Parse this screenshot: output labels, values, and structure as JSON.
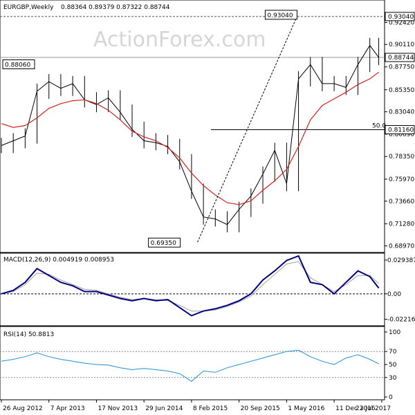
{
  "chart_data": [
    {
      "type": "line",
      "name": "price",
      "title": "EURGBP,Weekly",
      "ohlc_text": "0.88364 0.89379 0.87322 0.88744",
      "ylim": [
        0.6835,
        0.947
      ],
      "y_ticks": [
        "0.92420",
        "0.90110",
        "0.87750",
        "0.85350",
        "0.83040",
        "0.80690",
        "0.78350",
        "0.75970",
        "0.73660",
        "0.71280",
        "0.68970"
      ],
      "y_tick_values": [
        0.9242,
        0.9011,
        0.8775,
        0.8535,
        0.8304,
        0.8069,
        0.7835,
        0.7597,
        0.7366,
        0.7128,
        0.6897
      ],
      "price_boxes": [
        {
          "label": "0.93040",
          "value": 0.9304,
          "side": "right"
        },
        {
          "label": "0.88744",
          "value": 0.88744,
          "side": "right"
        },
        {
          "label": "0.81160",
          "value": 0.8116,
          "side": "right"
        }
      ],
      "annotations": [
        {
          "label": "0.93040",
          "value": 0.9304,
          "week": 199
        },
        {
          "label": "0.88060",
          "value": 0.8806,
          "week": 24
        },
        {
          "label": "0.69350",
          "value": 0.6935,
          "week": 126
        }
      ],
      "fib_label": "50.0",
      "fib_value": 0.8116,
      "high_line_value": 0.9304,
      "current_line_value": 0.88744,
      "trendline": [
        {
          "week": 132,
          "value": 0.6935
        },
        {
          "week": 199,
          "value": 0.9304
        }
      ],
      "x_weeks": [
        0,
        8,
        16,
        24,
        32,
        40,
        48,
        56,
        64,
        72,
        80,
        88,
        96,
        104,
        112,
        120,
        128,
        136,
        144,
        152,
        160,
        168,
        176,
        184,
        192,
        200,
        208,
        216,
        224,
        232,
        240,
        248,
        254
      ],
      "close": [
        0.795,
        0.8,
        0.805,
        0.852,
        0.862,
        0.855,
        0.86,
        0.843,
        0.838,
        0.845,
        0.83,
        0.812,
        0.8,
        0.798,
        0.794,
        0.778,
        0.747,
        0.72,
        0.718,
        0.712,
        0.728,
        0.742,
        0.765,
        0.79,
        0.755,
        0.865,
        0.88,
        0.86,
        0.86,
        0.856,
        0.88,
        0.9,
        0.8874
      ],
      "ma": [
        0.818,
        0.814,
        0.816,
        0.824,
        0.834,
        0.839,
        0.842,
        0.843,
        0.839,
        0.832,
        0.822,
        0.81,
        0.804,
        0.8,
        0.793,
        0.782,
        0.766,
        0.753,
        0.743,
        0.735,
        0.733,
        0.737,
        0.748,
        0.758,
        0.77,
        0.794,
        0.822,
        0.837,
        0.844,
        0.851,
        0.859,
        0.865,
        0.872
      ],
      "x_labels": [
        {
          "label": "26 Aug 2012",
          "week": 0
        },
        {
          "label": "7 Apr 2013",
          "week": 32
        },
        {
          "label": "17 Nov 2013",
          "week": 64
        },
        {
          "label": "29 Jun 2014",
          "week": 96
        },
        {
          "label": "8 Feb 2015",
          "week": 128
        },
        {
          "label": "20 Sep 2015",
          "week": 160
        },
        {
          "label": "1 May 2016",
          "week": 192
        },
        {
          "label": "11 Dec 2016",
          "week": 224
        },
        {
          "label": "23 Jul 2017",
          "week": 256
        }
      ],
      "watermark": "ActionForex.com",
      "colors": {
        "price": "#000000",
        "ma": "#d62020",
        "trend": "#000000"
      }
    },
    {
      "type": "line",
      "name": "macd",
      "title": "MACD(12,26,9) 0.004919 0.008953",
      "ylim": [
        -0.026,
        0.033
      ],
      "y_ticks": [
        "0.029387",
        "0.00",
        "-0.022161"
      ],
      "y_tick_values": [
        0.029387,
        0.0,
        -0.022161
      ],
      "x_weeks": [
        0,
        8,
        16,
        24,
        32,
        40,
        48,
        56,
        64,
        72,
        80,
        88,
        96,
        104,
        112,
        120,
        128,
        136,
        144,
        152,
        160,
        168,
        176,
        184,
        192,
        200,
        208,
        216,
        224,
        232,
        240,
        248,
        254
      ],
      "macd": [
        0.0,
        0.003,
        0.01,
        0.022,
        0.016,
        0.01,
        0.007,
        0.002,
        0.002,
        -0.001,
        -0.004,
        -0.006,
        -0.004,
        -0.006,
        -0.005,
        -0.012,
        -0.019,
        -0.015,
        -0.013,
        -0.01,
        -0.006,
        0.0,
        0.012,
        0.02,
        0.029,
        0.033,
        0.01,
        0.008,
        0.0,
        0.01,
        0.02,
        0.015,
        0.005
      ],
      "signal": [
        0.0,
        0.002,
        0.008,
        0.018,
        0.017,
        0.012,
        0.008,
        0.004,
        0.003,
        0.0,
        -0.003,
        -0.005,
        -0.004,
        -0.005,
        -0.006,
        -0.01,
        -0.015,
        -0.015,
        -0.014,
        -0.011,
        -0.007,
        -0.002,
        0.008,
        0.017,
        0.026,
        0.028,
        0.014,
        0.008,
        0.002,
        0.008,
        0.016,
        0.016,
        0.009
      ],
      "colors": {
        "macd": "#000080",
        "signal": "#a0a0a0"
      }
    },
    {
      "type": "line",
      "name": "rsi",
      "title": "RSI(14) 50.8813",
      "ylim": [
        0,
        100
      ],
      "y_ticks": [
        "100",
        "70",
        "50",
        "30",
        "0"
      ],
      "y_tick_values": [
        100,
        70,
        50,
        30,
        0
      ],
      "levels": [
        70,
        30
      ],
      "x_weeks": [
        0,
        8,
        16,
        24,
        32,
        40,
        48,
        56,
        64,
        72,
        80,
        88,
        96,
        104,
        112,
        120,
        128,
        136,
        144,
        152,
        160,
        168,
        176,
        184,
        192,
        200,
        208,
        216,
        224,
        232,
        240,
        248,
        254
      ],
      "rsi": [
        55,
        58,
        62,
        68,
        62,
        58,
        55,
        52,
        50,
        49,
        45,
        42,
        44,
        42,
        40,
        36,
        24,
        40,
        38,
        45,
        50,
        55,
        60,
        65,
        70,
        72,
        62,
        55,
        50,
        60,
        65,
        58,
        51
      ],
      "colors": {
        "rsi": "#1f8fd6"
      }
    }
  ]
}
